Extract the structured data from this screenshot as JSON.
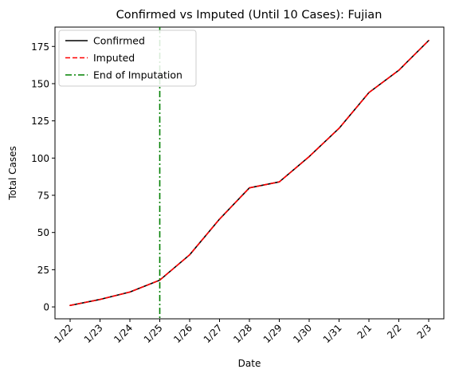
{
  "chart_data": {
    "type": "line",
    "title": "Confirmed vs Imputed (Until 10 Cases): Fujian",
    "xlabel": "Date",
    "ylabel": "Total Cases",
    "categories": [
      "1/22",
      "1/23",
      "1/24",
      "1/25",
      "1/26",
      "1/27",
      "1/28",
      "1/29",
      "1/30",
      "1/31",
      "2/1",
      "2/2",
      "2/3"
    ],
    "ylim": [
      -8,
      188
    ],
    "yticks": [
      0,
      25,
      50,
      75,
      100,
      125,
      150,
      175
    ],
    "series": [
      {
        "name": "Confirmed",
        "color": "#000000",
        "style": "solid",
        "values": [
          1,
          5,
          10,
          18,
          35,
          59,
          80,
          84,
          101,
          120,
          144,
          159,
          179
        ]
      },
      {
        "name": "Imputed",
        "color": "#ff0000",
        "style": "dashed",
        "values": [
          1,
          5,
          10,
          18,
          35,
          59,
          80,
          84,
          101,
          120,
          144,
          159,
          179
        ]
      }
    ],
    "vline": {
      "name": "End of Imputation",
      "at_category": "1/25",
      "color": "#008000",
      "style": "dashdot"
    },
    "legend_position": "upper-left",
    "grid": false
  }
}
